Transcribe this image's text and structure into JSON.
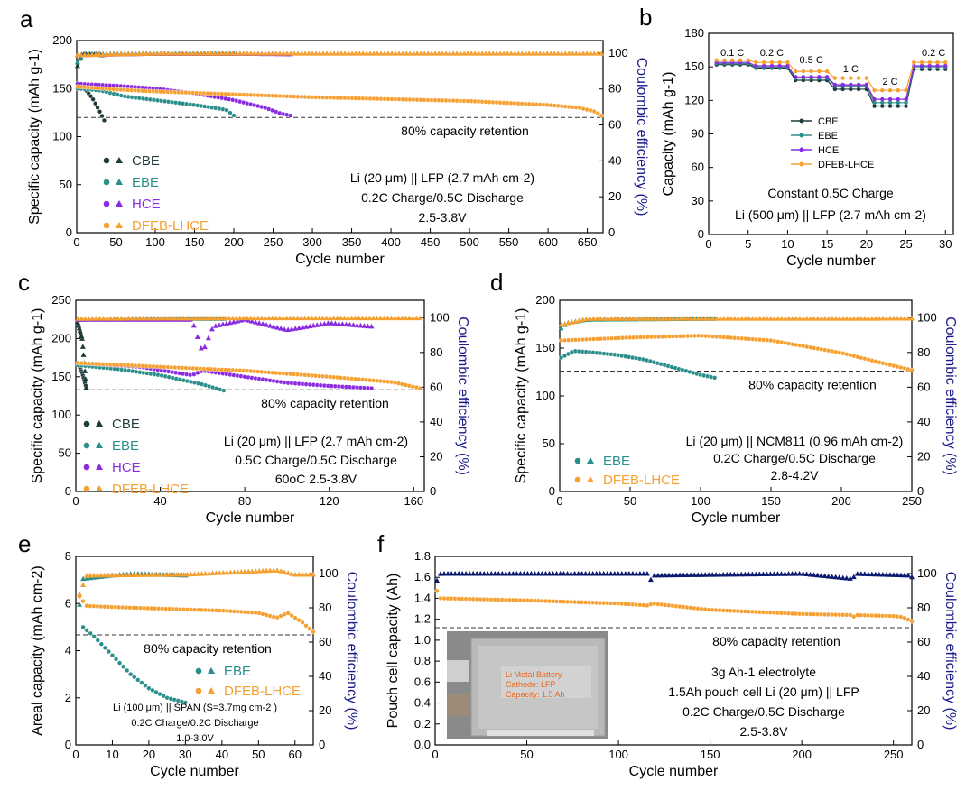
{
  "colors": {
    "CBE": "#1f3b3b",
    "EBE": "#2a8f8a",
    "HCE": "#8a2be2",
    "DFEB-LHCE": "#f5a030",
    "navy": "#0a1a6e",
    "ref": "#555555"
  },
  "chart_data": [
    {
      "panel": "a",
      "type": "scatter",
      "xlabel": "Cycle number",
      "ylabel": "Specific capacity (mAh g-1)",
      "y2label": "Coulombic efficiency (%)",
      "xlim": [
        0,
        670
      ],
      "ylim": [
        0,
        200
      ],
      "y2lim": [
        0,
        107
      ],
      "xticks": [
        0,
        50,
        100,
        150,
        200,
        250,
        300,
        350,
        400,
        450,
        500,
        550,
        600,
        650
      ],
      "yticks": [
        0,
        50,
        100,
        150,
        200
      ],
      "y2ticks": [
        0,
        20,
        40,
        60,
        80,
        100
      ],
      "ref_line": {
        "y": 120,
        "label": "80% capacity retention"
      },
      "annotations": [
        "Li (20 μm) || LFP (2.7 mAh cm-2)",
        "0.2C Charge/0.5C Discharge",
        "2.5-3.8V"
      ],
      "legend": [
        "CBE",
        "EBE",
        "HCE",
        "DFEB-LHCE"
      ],
      "series": [
        {
          "name": "CBE",
          "capacity": [
            [
              1,
              155
            ],
            [
              10,
              150
            ],
            [
              20,
              140
            ],
            [
              30,
              125
            ],
            [
              35,
              117
            ]
          ],
          "ce": [
            [
              1,
              93
            ],
            [
              5,
              99
            ],
            [
              10,
              99.5
            ],
            [
              20,
              99.5
            ],
            [
              33,
              99
            ]
          ]
        },
        {
          "name": "EBE",
          "capacity": [
            [
              1,
              150
            ],
            [
              30,
              148
            ],
            [
              60,
              142
            ],
            [
              100,
              138
            ],
            [
              150,
              133
            ],
            [
              190,
              128
            ],
            [
              200,
              122
            ]
          ],
          "ce": [
            [
              1,
              95
            ],
            [
              10,
              99.6
            ],
            [
              100,
              99.8
            ],
            [
              200,
              99.8
            ]
          ]
        },
        {
          "name": "HCE",
          "capacity": [
            [
              1,
              155
            ],
            [
              50,
              153
            ],
            [
              100,
              150
            ],
            [
              150,
              145
            ],
            [
              200,
              138
            ],
            [
              240,
              130
            ],
            [
              260,
              124
            ],
            [
              272,
              122
            ]
          ],
          "ce": [
            [
              1,
              99
            ],
            [
              100,
              99.8
            ],
            [
              200,
              99.8
            ],
            [
              260,
              99.6
            ],
            [
              272,
              99.5
            ]
          ]
        },
        {
          "name": "DFEB-LHCE",
          "capacity": [
            [
              1,
              152
            ],
            [
              50,
              149
            ],
            [
              100,
              147
            ],
            [
              200,
              144
            ],
            [
              300,
              141
            ],
            [
              400,
              139
            ],
            [
              500,
              137
            ],
            [
              600,
              133
            ],
            [
              640,
              130
            ],
            [
              660,
              126
            ],
            [
              668,
              122
            ]
          ],
          "ce": [
            [
              1,
              99
            ],
            [
              100,
              99.9
            ],
            [
              300,
              99.9
            ],
            [
              500,
              99.9
            ],
            [
              668,
              99.9
            ]
          ]
        }
      ]
    },
    {
      "panel": "b",
      "type": "line",
      "xlabel": "Cycle number",
      "ylabel": "Capacity (mAh g-1)",
      "xlim": [
        0,
        31
      ],
      "ylim": [
        0,
        180
      ],
      "xticks": [
        0,
        5,
        10,
        15,
        20,
        25,
        30
      ],
      "yticks": [
        0,
        30,
        60,
        90,
        120,
        150,
        180
      ],
      "rate_labels": [
        {
          "x": 3,
          "label": "0.1 C"
        },
        {
          "x": 8,
          "label": "0.2 C"
        },
        {
          "x": 13,
          "label": "0.5 C"
        },
        {
          "x": 18,
          "label": "1 C"
        },
        {
          "x": 23,
          "label": "2 C"
        },
        {
          "x": 28.5,
          "label": "0.2 C"
        }
      ],
      "annotations": [
        "Constant 0.5C Charge",
        "Li (500 μm) || LFP (2.7 mAh cm-2)"
      ],
      "legend": [
        "CBE",
        "EBE",
        "HCE",
        "DFEB-LHCE"
      ],
      "series": [
        {
          "name": "CBE",
          "steps": [
            152,
            149,
            138,
            130,
            115,
            148
          ]
        },
        {
          "name": "EBE",
          "steps": [
            153,
            150,
            140,
            133,
            118,
            150
          ]
        },
        {
          "name": "HCE",
          "steps": [
            154,
            151,
            141,
            134,
            121,
            151
          ]
        },
        {
          "name": "DFEB-LHCE",
          "steps": [
            156,
            154,
            146,
            140,
            129,
            154
          ]
        }
      ]
    },
    {
      "panel": "c",
      "type": "scatter",
      "xlabel": "Cycle number",
      "ylabel": "Specific capacity (mAh g-1)",
      "y2label": "Coulombic efficiency (%)",
      "xlim": [
        0,
        165
      ],
      "ylim": [
        0,
        250
      ],
      "y2lim": [
        0,
        110
      ],
      "xticks": [
        0,
        40,
        80,
        120,
        160
      ],
      "yticks": [
        0,
        50,
        100,
        150,
        200,
        250
      ],
      "y2ticks": [
        0,
        20,
        40,
        60,
        80,
        100
      ],
      "ref_line": {
        "y": 133,
        "label": "80% capacity retention"
      },
      "annotations": [
        "Li (20 μm) || LFP (2.7 mAh cm-2)",
        "0.5C Charge/0.5C Discharge",
        "60oC 2.5-3.8V"
      ],
      "legend": [
        "CBE",
        "EBE",
        "HCE",
        "DFEB-LHCE"
      ],
      "series": [
        {
          "name": "CBE",
          "capacity": [
            [
              1,
              168
            ],
            [
              3,
              155
            ],
            [
              5,
              135
            ]
          ],
          "ce": [
            [
              1,
              97
            ],
            [
              3,
              88
            ],
            [
              5,
              60
            ]
          ]
        },
        {
          "name": "EBE",
          "capacity": [
            [
              1,
              165
            ],
            [
              20,
              160
            ],
            [
              40,
              152
            ],
            [
              60,
              140
            ],
            [
              70,
              132
            ]
          ],
          "ce": [
            [
              1,
              99
            ],
            [
              30,
              99.5
            ],
            [
              70,
              99.5
            ]
          ]
        },
        {
          "name": "HCE",
          "capacity": [
            [
              1,
              168
            ],
            [
              30,
              163
            ],
            [
              55,
              152
            ],
            [
              60,
              158
            ],
            [
              80,
              150
            ],
            [
              100,
              142
            ],
            [
              120,
              138
            ],
            [
              140,
              135
            ]
          ],
          "ce": [
            [
              1,
              99
            ],
            [
              55,
              99
            ],
            [
              60,
              80
            ],
            [
              65,
              95
            ],
            [
              80,
              99
            ],
            [
              100,
              93
            ],
            [
              120,
              97
            ],
            [
              140,
              95
            ]
          ]
        },
        {
          "name": "DFEB-LHCE",
          "capacity": [
            [
              1,
              168
            ],
            [
              40,
              163
            ],
            [
              80,
              158
            ],
            [
              120,
              150
            ],
            [
              150,
              143
            ],
            [
              163,
              135
            ]
          ],
          "ce": [
            [
              1,
              99.5
            ],
            [
              80,
              99.8
            ],
            [
              163,
              99.8
            ]
          ]
        }
      ]
    },
    {
      "panel": "d",
      "type": "scatter",
      "xlabel": "Cycle number",
      "ylabel": "Specific capacity (mAh g-1)",
      "y2label": "Coulombic efficiency (%)",
      "xlim": [
        0,
        250
      ],
      "ylim": [
        0,
        200
      ],
      "y2lim": [
        0,
        110
      ],
      "xticks": [
        0,
        50,
        100,
        150,
        200,
        250
      ],
      "yticks": [
        0,
        50,
        100,
        150,
        200
      ],
      "y2ticks": [
        0,
        20,
        40,
        60,
        80,
        100
      ],
      "ref_line": {
        "y": 126,
        "label": "80% capacity retention"
      },
      "annotations": [
        "Li (20 μm) || NCM811 (0.96 mAh cm-2)",
        "0.2C Charge/0.5C Discharge",
        "2.8-4.2V"
      ],
      "legend": [
        "EBE",
        "DFEB-LHCE"
      ],
      "series": [
        {
          "name": "EBE",
          "capacity": [
            [
              1,
              140
            ],
            [
              10,
              147
            ],
            [
              20,
              146
            ],
            [
              40,
              143
            ],
            [
              60,
              138
            ],
            [
              80,
              130
            ],
            [
              100,
              122
            ],
            [
              110,
              119
            ]
          ],
          "ce": [
            [
              1,
              94
            ],
            [
              5,
              97
            ],
            [
              20,
              99
            ],
            [
              110,
              99.5
            ]
          ]
        },
        {
          "name": "DFEB-LHCE",
          "capacity": [
            [
              1,
              158
            ],
            [
              50,
              161
            ],
            [
              100,
              163
            ],
            [
              150,
              158
            ],
            [
              200,
              145
            ],
            [
              230,
              134
            ],
            [
              250,
              127
            ]
          ],
          "ce": [
            [
              1,
              96
            ],
            [
              20,
              99.5
            ],
            [
              250,
              99.6
            ]
          ]
        }
      ]
    },
    {
      "panel": "e",
      "type": "scatter",
      "xlabel": "Cycle number",
      "ylabel": "Areal capacity (mAh cm-2)",
      "y2label": "Coulombic efficiency (%)",
      "xlim": [
        0,
        65
      ],
      "ylim": [
        0,
        8
      ],
      "y2lim": [
        0,
        110
      ],
      "xticks": [
        0,
        10,
        20,
        30,
        40,
        50,
        60
      ],
      "yticks": [
        0,
        2,
        4,
        6,
        8
      ],
      "y2ticks": [
        0,
        20,
        40,
        60,
        80,
        100
      ],
      "ref_line": {
        "y": 4.67,
        "label": "80% capacity retention"
      },
      "annotations": [
        "Li (100 μm) || SPAN (S=3.7mg cm-2 )",
        "0.2C Charge/0.2C Discharge",
        "1.0-3.0V"
      ],
      "legend": [
        "EBE",
        "DFEB-LHCE"
      ],
      "series": [
        {
          "name": "EBE",
          "capacity": [
            [
              2,
              5.0
            ],
            [
              5,
              4.6
            ],
            [
              10,
              3.8
            ],
            [
              15,
              3.0
            ],
            [
              20,
              2.4
            ],
            [
              25,
              2.0
            ],
            [
              30,
              1.8
            ]
          ],
          "ce": [
            [
              1,
              82
            ],
            [
              2,
              97
            ],
            [
              10,
              99
            ],
            [
              16,
              100
            ],
            [
              30,
              99
            ]
          ]
        },
        {
          "name": "DFEB-LHCE",
          "capacity": [
            [
              1,
              6.3
            ],
            [
              3,
              5.9
            ],
            [
              10,
              5.85
            ],
            [
              20,
              5.8
            ],
            [
              30,
              5.75
            ],
            [
              40,
              5.7
            ],
            [
              50,
              5.6
            ],
            [
              55,
              5.4
            ],
            [
              58,
              5.6
            ],
            [
              62,
              5.2
            ],
            [
              65,
              4.8
            ]
          ],
          "ce": [
            [
              1,
              88
            ],
            [
              3,
              99
            ],
            [
              30,
              99.5
            ],
            [
              55,
              102
            ],
            [
              60,
              99.5
            ],
            [
              65,
              99.5
            ]
          ]
        }
      ]
    },
    {
      "panel": "f",
      "type": "scatter",
      "xlabel": "Cycle number",
      "ylabel": "Pouch cell capacity (Ah)",
      "y2label": "Coulombic efficiency (%)",
      "xlim": [
        0,
        260
      ],
      "ylim": [
        0,
        1.8
      ],
      "y2lim": [
        0,
        110
      ],
      "xticks": [
        0,
        50,
        100,
        150,
        200,
        250
      ],
      "yticks": [
        0,
        0.2,
        0.4,
        0.6,
        0.8,
        1.0,
        1.2,
        1.4,
        1.6,
        1.8
      ],
      "y2ticks": [
        0,
        20,
        40,
        60,
        80,
        100
      ],
      "ref_line": {
        "y": 1.12,
        "label": "80% capacity retention"
      },
      "annotations": [
        "3g Ah-1 electrolyte",
        "1.5Ah pouch cell Li (20 μm) || LFP",
        "0.2C Charge/0.5C Discharge",
        "2.5-3.8V"
      ],
      "photo_text": [
        "Li Metal Battery",
        "Cathode: LFP",
        "Capacity: 1.5 Ah"
      ],
      "series": [
        {
          "name": "capacity",
          "capacity": [
            [
              1,
              1.47
            ],
            [
              3,
              1.4
            ],
            [
              50,
              1.38
            ],
            [
              100,
              1.35
            ],
            [
              117,
              1.33
            ],
            [
              118,
              1.35
            ],
            [
              150,
              1.29
            ],
            [
              200,
              1.25
            ],
            [
              228,
              1.24
            ],
            [
              229,
              1.2
            ],
            [
              230,
              1.24
            ],
            [
              250,
              1.23
            ],
            [
              255,
              1.22
            ],
            [
              260,
              1.18
            ]
          ]
        },
        {
          "name": "ce",
          "ce": [
            [
              1,
              96
            ],
            [
              3,
              100
            ],
            [
              50,
              100
            ],
            [
              116,
              100
            ],
            [
              117,
              92
            ],
            [
              118,
              99
            ],
            [
              200,
              100
            ],
            [
              228,
              97
            ],
            [
              229,
              100
            ],
            [
              258,
              99
            ],
            [
              260,
              98
            ]
          ]
        }
      ]
    }
  ],
  "letters": [
    "a",
    "b",
    "c",
    "d",
    "e",
    "f"
  ]
}
